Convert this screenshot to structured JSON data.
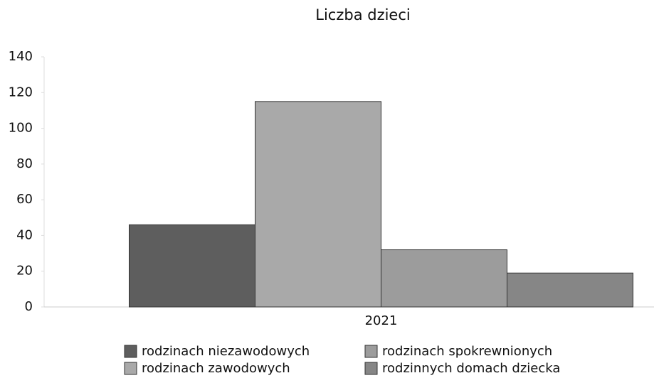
{
  "chart_data": {
    "type": "bar",
    "title": "Liczba dzieci",
    "categories": [
      "2021"
    ],
    "series": [
      {
        "name": "rodzinach niezawodowych",
        "color": "#5e5e5e",
        "values": [
          46
        ]
      },
      {
        "name": "rodzinach zawodowych",
        "color": "#a9a9a9",
        "values": [
          115
        ]
      },
      {
        "name": "rodzinach spokrewnionych",
        "color": "#9c9c9c",
        "values": [
          32
        ]
      },
      {
        "name": "rodzinnych domach dziecka",
        "color": "#868686",
        "values": [
          19
        ]
      }
    ],
    "ylim": [
      0,
      140
    ],
    "yticks": [
      0,
      20,
      40,
      60,
      80,
      100,
      120,
      140
    ],
    "grid": false
  }
}
